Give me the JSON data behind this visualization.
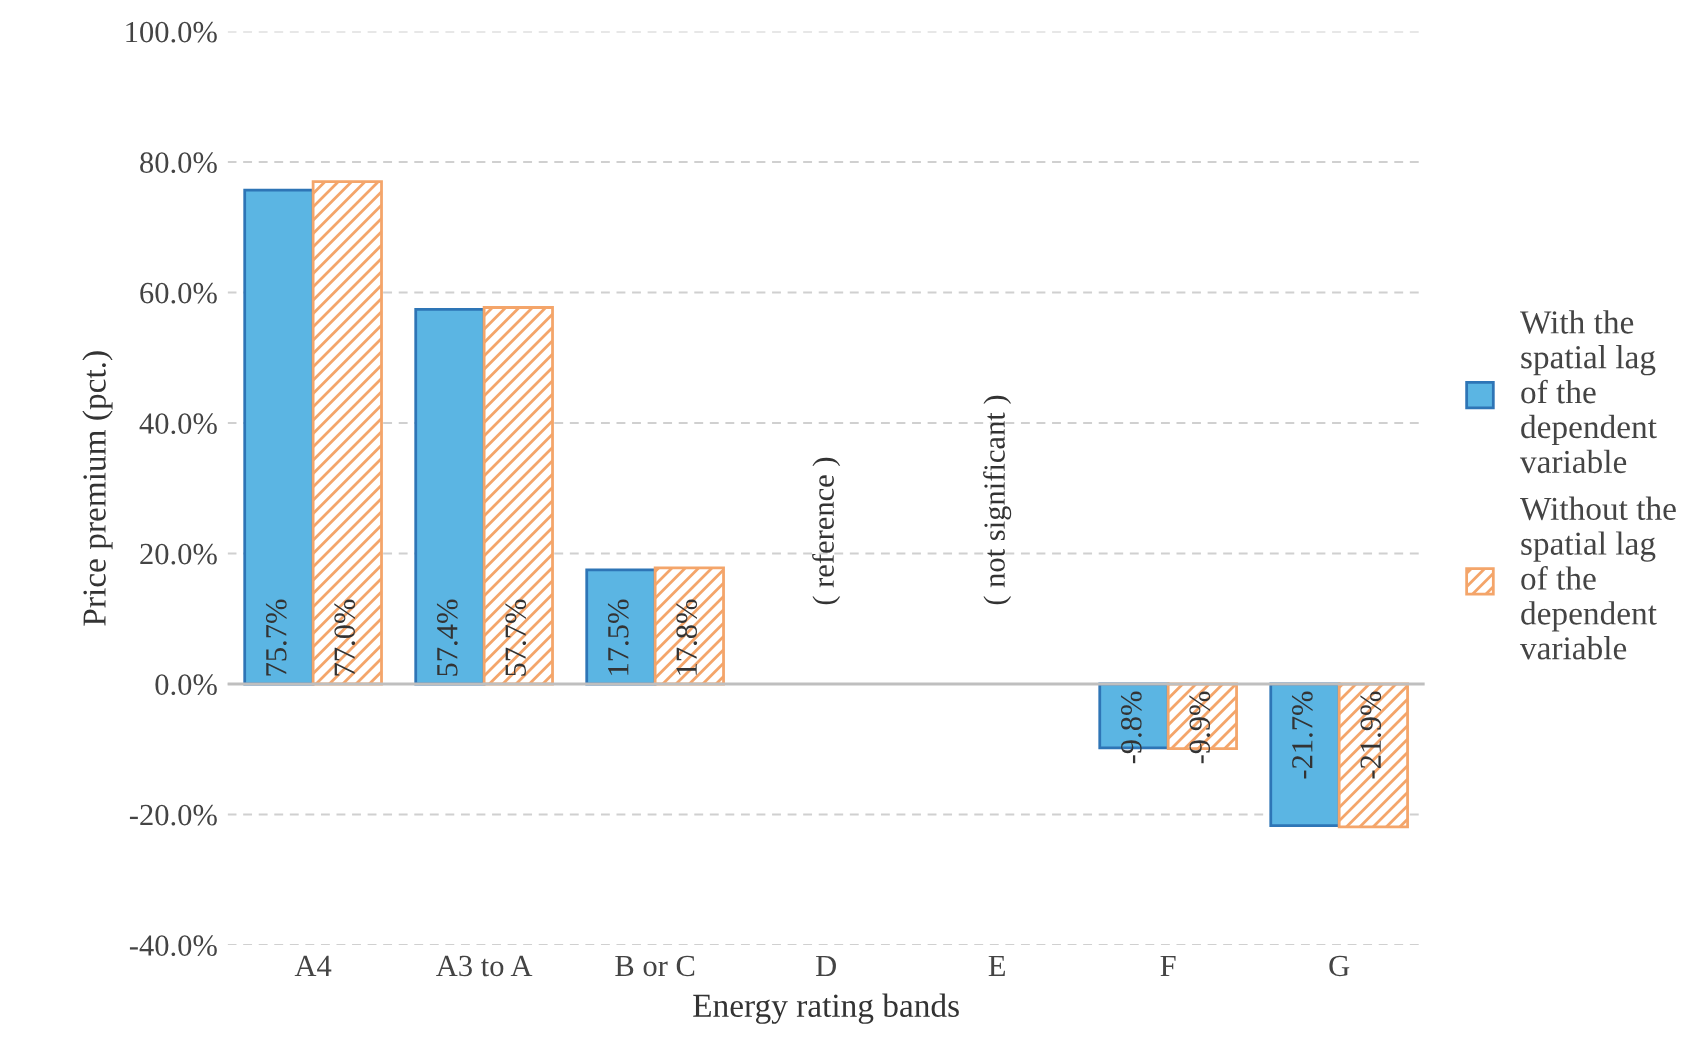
{
  "chart_data": {
    "type": "bar",
    "xlabel": "Energy rating bands",
    "ylabel": "Price premium (pct.)",
    "categories": [
      "A4",
      "A3 to A",
      "B or C",
      "D",
      "E",
      "F",
      "G"
    ],
    "series": [
      {
        "name": "With the\nspatial lag\nof the\ndependent\nvariable",
        "color": "#5bb5e3",
        "values": [
          75.7,
          57.4,
          17.5,
          null,
          null,
          -9.8,
          -21.7
        ],
        "value_labels": [
          "75.7%",
          "57.4%",
          "17.5%",
          null,
          null,
          "-9.8%",
          "-21.7%"
        ]
      },
      {
        "name": "Without the\nspatial lag\nof the\ndependent\nvariable",
        "color": "#f4a56a",
        "values": [
          77.0,
          57.7,
          17.8,
          null,
          null,
          -9.9,
          -21.9
        ],
        "value_labels": [
          "77.0%",
          "57.7%",
          "17.8%",
          null,
          null,
          "-9.9%",
          "-21.9%"
        ]
      }
    ],
    "annotations": [
      "( reference )",
      "( not significant )"
    ],
    "ylim": [
      -40,
      100
    ],
    "yticks": [
      {
        "value": -40,
        "label": "-40.0%"
      },
      {
        "value": -20,
        "label": "-20.0%"
      },
      {
        "value": 0,
        "label": "0.0%"
      },
      {
        "value": 20,
        "label": "20.0%"
      },
      {
        "value": 40,
        "label": "40.0%"
      },
      {
        "value": 60,
        "label": "60.0%"
      },
      {
        "value": 80,
        "label": "80.0%"
      },
      {
        "value": 100,
        "label": "100.0%"
      }
    ],
    "grid": "y",
    "legend": "right"
  }
}
